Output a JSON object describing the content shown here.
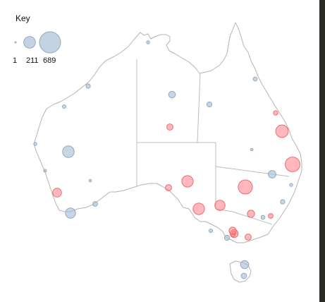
{
  "key": {
    "title": "Key",
    "labels": [
      "1",
      "211",
      "689"
    ],
    "values": [
      1,
      211,
      689
    ]
  },
  "colors": {
    "blue_fill": "#a9c0d6",
    "blue_stroke": "#93aac3",
    "red_fill": "#ff8a8f",
    "red_stroke": "#f06a70",
    "coast": "#b4b4b4"
  },
  "chart_data": {
    "type": "scatter",
    "series": [
      {
        "category": "blue",
        "values": [
          15,
          30,
          20,
          70,
          40,
          25,
          15,
          12,
          210,
          10,
          35,
          160,
          10,
          90,
          15,
          30,
          25,
          20,
          40,
          100,
          45
        ]
      },
      {
        "category": "red",
        "values": [
          30,
          240,
          60,
          330,
          60,
          200,
          120,
          200,
          160,
          310,
          80,
          35,
          100,
          60,
          20,
          25,
          80
        ]
      }
    ]
  }
}
